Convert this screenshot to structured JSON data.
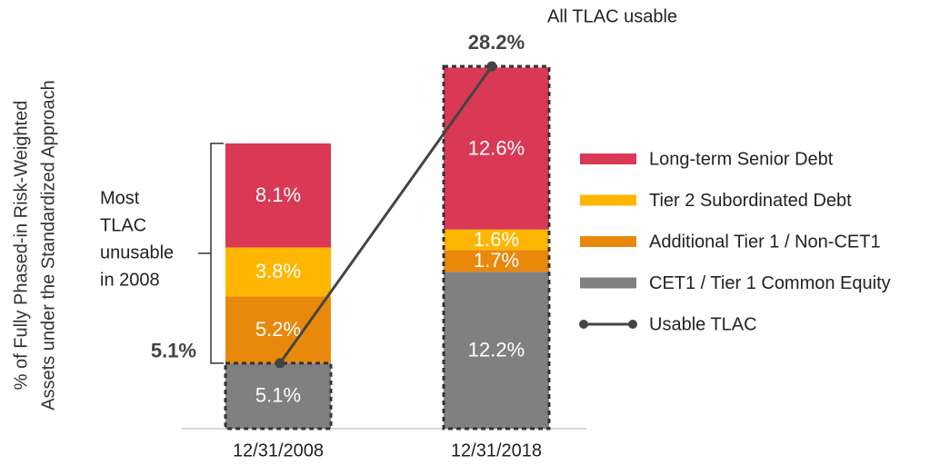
{
  "chart_data": {
    "type": "stacked_bar_line",
    "ylabel": [
      "% of Fully Phased-in Risk-Weighted",
      "Assets under the Standardized Approach"
    ],
    "categories": [
      "12/31/2008",
      "12/31/2018"
    ],
    "ylim": [
      0,
      30
    ],
    "series": [
      {
        "name": "CET1 / Tier 1 Common Equity",
        "type": "bar",
        "color": "#808080",
        "values": [
          5.1,
          12.2
        ],
        "value_labels": [
          "5.1%",
          "12.2%"
        ]
      },
      {
        "name": "Additional Tier 1 / Non-CET1",
        "type": "bar",
        "color": "#e8890c",
        "values": [
          5.2,
          1.7
        ],
        "value_labels": [
          "5.2%",
          "1.7%"
        ]
      },
      {
        "name": "Tier 2 Subordinated Debt",
        "type": "bar",
        "color": "#ffb600",
        "values": [
          3.8,
          1.6
        ],
        "value_labels": [
          "3.8%",
          "1.6%"
        ]
      },
      {
        "name": "Long-term Senior Debt",
        "type": "bar",
        "color": "#d93954",
        "values": [
          8.1,
          12.6
        ],
        "value_labels": [
          "8.1%",
          "12.6%"
        ]
      },
      {
        "name": "Usable TLAC",
        "type": "line",
        "color": "#444444",
        "values": [
          5.1,
          28.2
        ],
        "value_labels": [
          "5.1%",
          "28.2%"
        ]
      }
    ],
    "annotations": [
      {
        "lines": [
          "Most",
          "TLAC",
          "unusable",
          "in 2008"
        ]
      },
      {
        "lines": [
          "All TLAC usable"
        ]
      }
    ],
    "legend": "right"
  }
}
